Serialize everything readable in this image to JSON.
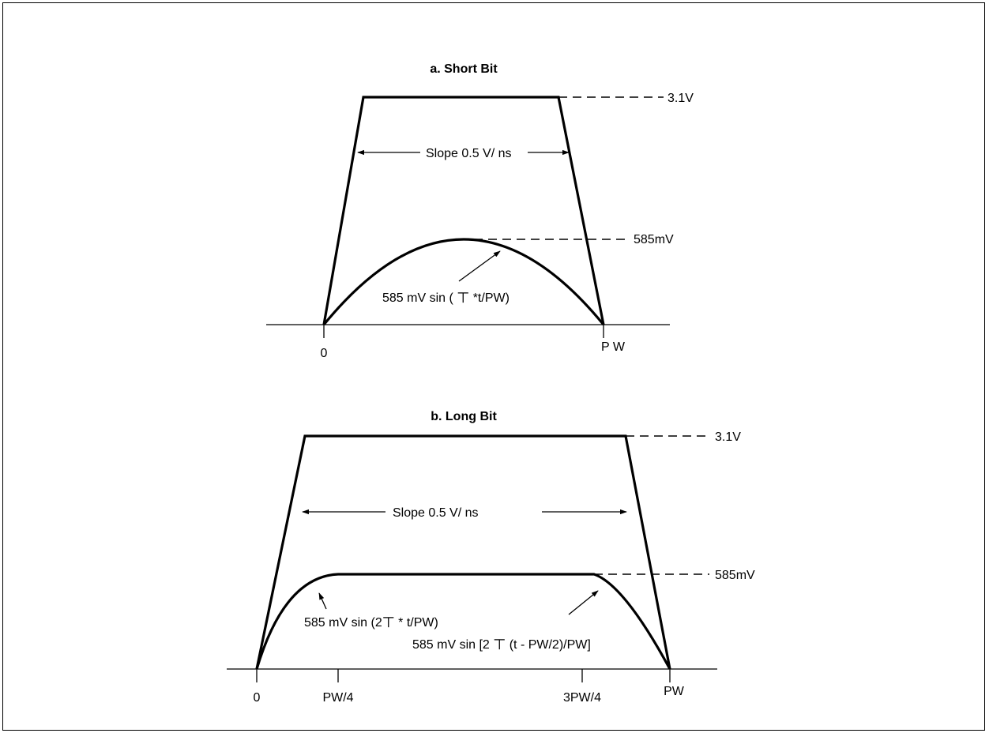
{
  "short_bit": {
    "title": "a. Short Bit",
    "level_high": "3.1V",
    "level_low": "585mV",
    "slope_label": "Slope 0.5 V/ ns",
    "formula": "585 mV sin ( ㄒ *t/PW)",
    "tick_start": "0",
    "tick_end": "P W"
  },
  "long_bit": {
    "title": "b. Long Bit",
    "level_high": "3.1V",
    "level_low": "585mV",
    "slope_label": "Slope 0.5 V/ ns",
    "formula_rise": "585 mV sin (2ㄒ * t/PW)",
    "formula_fall": "585 mV sin [2 ㄒ (t - PW/2)/PW]",
    "tick_start": "0",
    "tick_quarter": "PW/4",
    "tick_three_quarter": "3PW/4",
    "tick_end": "PW"
  }
}
